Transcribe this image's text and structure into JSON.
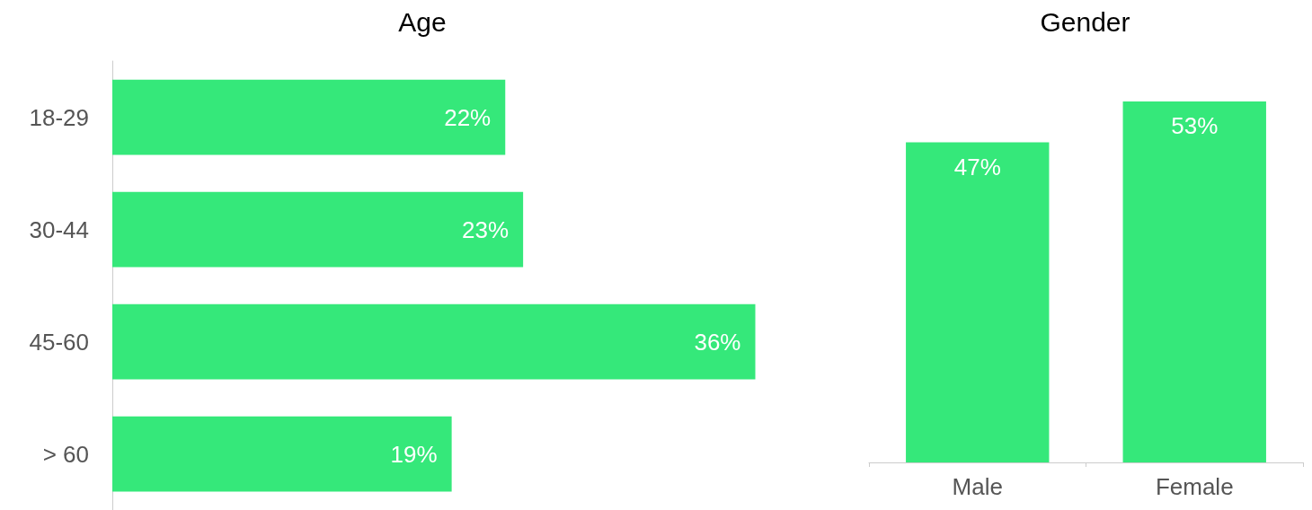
{
  "chart_data": [
    {
      "type": "bar",
      "title": "Age",
      "orientation": "horizontal",
      "categories": [
        "18-29",
        "30-44",
        "45-60",
        "> 60"
      ],
      "values": [
        22,
        23,
        36,
        19
      ],
      "value_labels": [
        "22%",
        "23%",
        "36%",
        "19%"
      ],
      "color": "#35e87a"
    },
    {
      "type": "bar",
      "title": "Gender",
      "categories": [
        "Male",
        "Female"
      ],
      "values": [
        47,
        53
      ],
      "value_labels": [
        "47%",
        "53%"
      ],
      "color": "#35e87a"
    }
  ]
}
